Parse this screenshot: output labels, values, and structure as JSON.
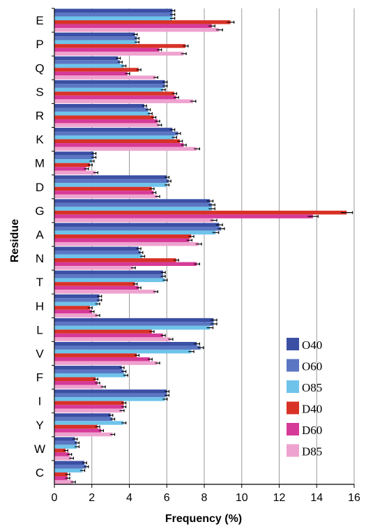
{
  "chart_data": {
    "type": "bar",
    "orientation": "horizontal",
    "xlabel": "Frequency (%)",
    "ylabel": "Residue",
    "xlim": [
      0,
      16
    ],
    "xticks": [
      0,
      2,
      4,
      6,
      8,
      10,
      12,
      14,
      16
    ],
    "grid": "vertical",
    "legend_position": "bottom-right",
    "error_bars": true,
    "categories": [
      "E",
      "P",
      "Q",
      "S",
      "R",
      "K",
      "M",
      "D",
      "G",
      "A",
      "N",
      "T",
      "H",
      "L",
      "V",
      "F",
      "I",
      "Y",
      "W",
      "C"
    ],
    "series": [
      {
        "name": "O40",
        "color": "#3b4fa4",
        "values": [
          6.3,
          4.3,
          3.4,
          5.9,
          4.8,
          6.3,
          2.1,
          6.0,
          8.3,
          8.8,
          4.5,
          5.8,
          2.4,
          8.5,
          7.6,
          3.6,
          6.0,
          3.0,
          1.1,
          1.6
        ]
      },
      {
        "name": "O60",
        "color": "#5b76c2",
        "values": [
          6.3,
          4.4,
          3.5,
          5.9,
          5.0,
          6.6,
          2.1,
          6.1,
          8.4,
          8.9,
          4.6,
          5.8,
          2.4,
          8.5,
          7.8,
          3.7,
          6.0,
          3.1,
          1.2,
          1.7
        ]
      },
      {
        "name": "O85",
        "color": "#6ec3ea",
        "values": [
          6.3,
          4.4,
          3.7,
          5.8,
          5.1,
          6.4,
          2.0,
          6.0,
          8.4,
          8.6,
          4.7,
          5.9,
          2.3,
          8.3,
          7.3,
          3.8,
          5.9,
          3.7,
          1.2,
          1.5
        ]
      },
      {
        "name": "D40",
        "color": "#d83227",
        "values": [
          9.4,
          7.0,
          4.5,
          6.4,
          5.3,
          6.7,
          1.9,
          5.2,
          15.6,
          7.3,
          6.5,
          4.3,
          1.9,
          5.2,
          4.4,
          2.2,
          3.7,
          2.3,
          0.6,
          0.7
        ]
      },
      {
        "name": "D60",
        "color": "#d63a98",
        "values": [
          8.4,
          5.6,
          3.9,
          6.5,
          5.5,
          6.9,
          1.7,
          5.3,
          13.8,
          7.2,
          7.6,
          4.5,
          2.0,
          5.8,
          5.1,
          2.3,
          3.7,
          2.5,
          0.8,
          0.7
        ]
      },
      {
        "name": "D85",
        "color": "#eea2cf",
        "values": [
          8.8,
          6.9,
          5.4,
          7.4,
          5.6,
          7.6,
          2.2,
          5.5,
          8.5,
          7.7,
          4.2,
          5.4,
          2.3,
          6.2,
          5.5,
          2.6,
          3.6,
          3.1,
          0.9,
          1.0
        ]
      }
    ]
  }
}
